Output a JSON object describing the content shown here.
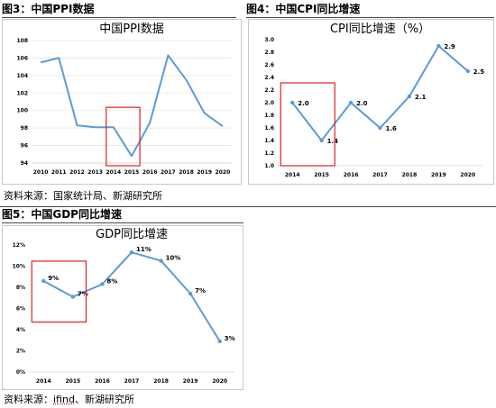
{
  "figures": {
    "fig3": {
      "caption": "图3：中国PPI数据"
    },
    "fig4": {
      "caption": "图4：中国CPI同比增速"
    },
    "fig5": {
      "caption": "图5：中国GDP同比增速"
    }
  },
  "sources": {
    "top": {
      "prefix": "资料来源：国家统计局、新湖研究所",
      "underlined": "",
      "suffix": ""
    },
    "bottom": {
      "prefix": "资料来源：",
      "underlined": "ifind",
      "suffix": "、新湖研究所"
    }
  },
  "colors": {
    "line": "#5b9bd5",
    "highlight_box": "#e02020"
  },
  "chart_data": [
    {
      "id": "ppi",
      "type": "line",
      "title": "中国PPI数据",
      "x": [
        "2010",
        "2011",
        "2012",
        "2013",
        "2014",
        "2015",
        "2016",
        "2017",
        "2018",
        "2019",
        "2020"
      ],
      "values": [
        105.5,
        106.0,
        98.3,
        98.1,
        98.1,
        94.8,
        98.6,
        106.3,
        103.5,
        99.7,
        98.2
      ],
      "ylim": [
        94,
        108
      ],
      "yticks": [
        94,
        96,
        98,
        100,
        102,
        104,
        106,
        108
      ],
      "ytick_labels": [
        "94",
        "96",
        "98",
        "100",
        "102",
        "104",
        "106",
        "108"
      ],
      "grid": true,
      "data_labels": [],
      "highlight_range": [
        "2014",
        "2015"
      ]
    },
    {
      "id": "cpi",
      "type": "line",
      "title": "CPI同比增速（%）",
      "x": [
        "2014",
        "2015",
        "2016",
        "2017",
        "2018",
        "2019",
        "2020"
      ],
      "values": [
        2.0,
        1.4,
        2.0,
        1.6,
        2.1,
        2.9,
        2.5
      ],
      "ylim": [
        1.0,
        3.0
      ],
      "yticks": [
        1.0,
        1.2,
        1.4,
        1.6,
        1.8,
        2.0,
        2.2,
        2.4,
        2.6,
        2.8,
        3.0
      ],
      "ytick_labels": [
        "1.0",
        "1.2",
        "1.4",
        "1.6",
        "1.8",
        "2.0",
        "2.2",
        "2.4",
        "2.6",
        "2.8",
        "3.0"
      ],
      "grid": false,
      "data_labels": [
        "2.0",
        "1.4",
        "2.0",
        "1.6",
        "2.1",
        "2.9",
        "2.5"
      ],
      "highlight_range": [
        "2014",
        "2015"
      ]
    },
    {
      "id": "gdp",
      "type": "line",
      "title": "GDP同比增速",
      "x": [
        "2014",
        "2015",
        "2016",
        "2017",
        "2018",
        "2019",
        "2020"
      ],
      "values": [
        8.6,
        7.1,
        8.3,
        11.3,
        10.5,
        7.4,
        2.9
      ],
      "ylim": [
        0,
        12
      ],
      "yticks": [
        0,
        2,
        4,
        6,
        8,
        10,
        12
      ],
      "ytick_labels": [
        "0%",
        "2%",
        "4%",
        "6%",
        "8%",
        "10%",
        "12%"
      ],
      "grid": false,
      "data_labels": [
        "9%",
        "7%",
        "8%",
        "11%",
        "10%",
        "7%",
        "3%"
      ],
      "highlight_range": [
        "2014",
        "2015"
      ]
    }
  ]
}
